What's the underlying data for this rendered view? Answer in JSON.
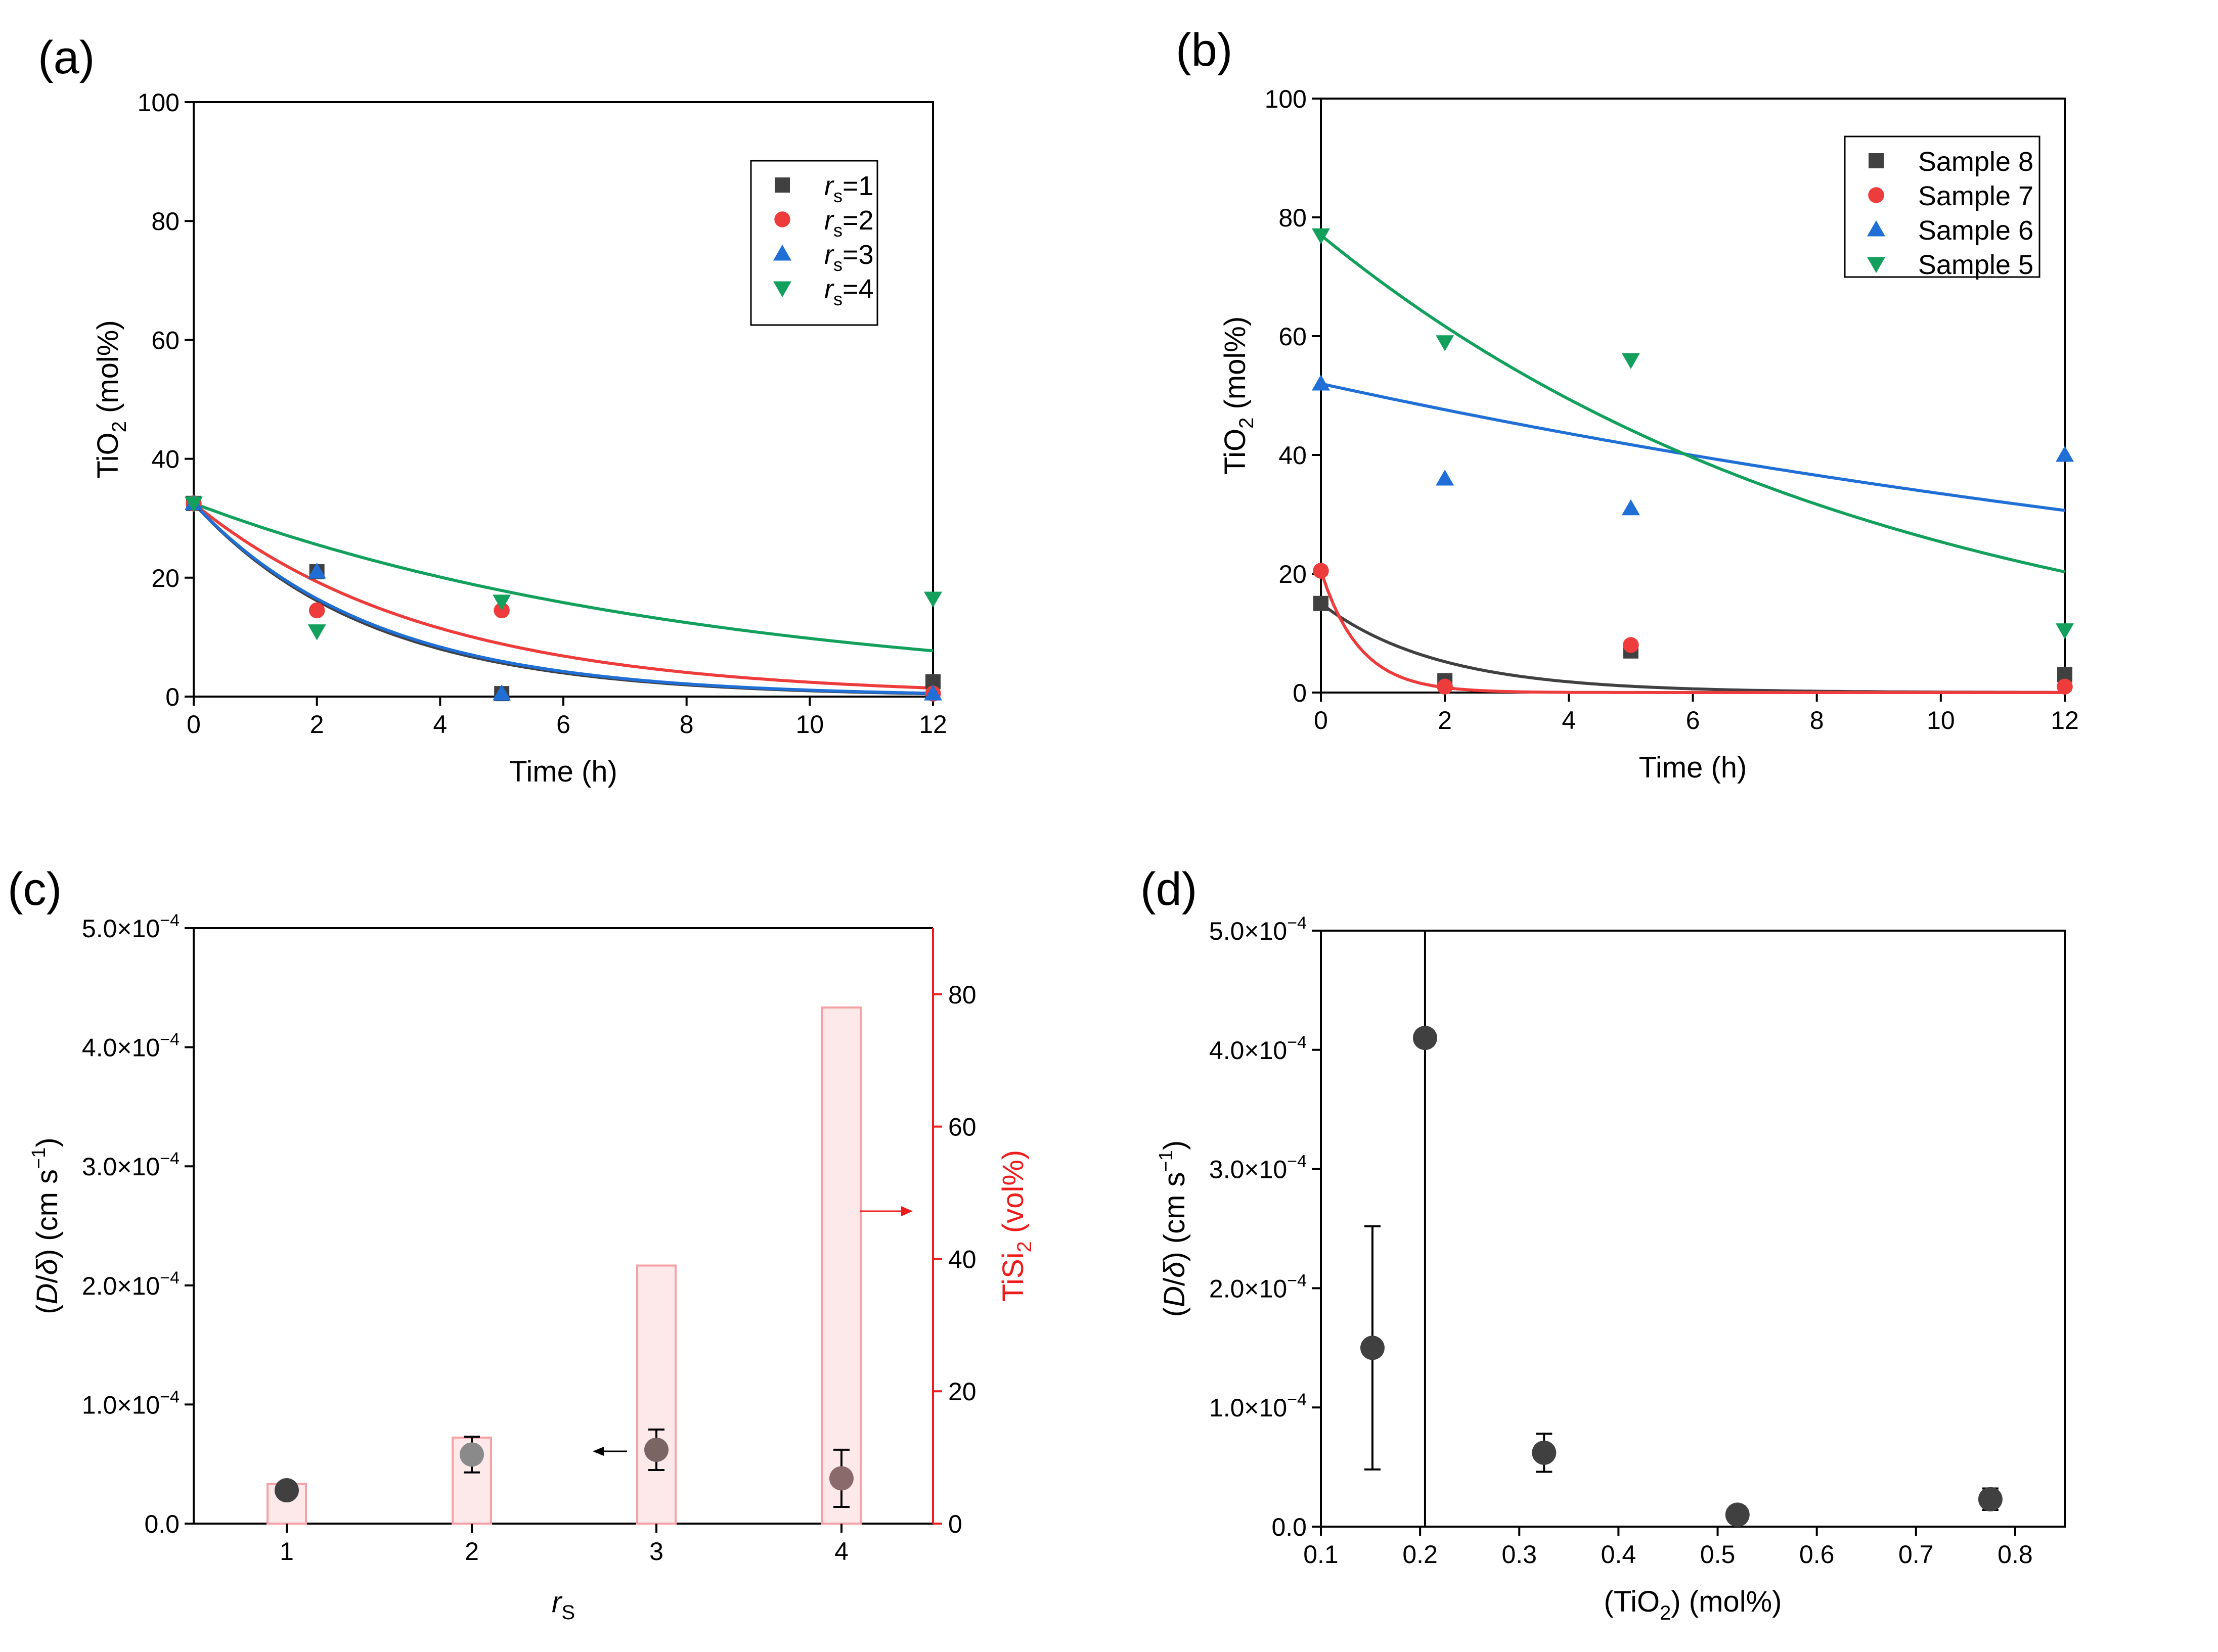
{
  "chart_data": [
    {
      "panel": "(a)",
      "type": "scatter",
      "xlabel": "Time (h)",
      "ylabel_main": "TiO",
      "ylabel_sub": "2",
      "ylabel_tail": " (mol%)",
      "xlim": [
        0,
        12
      ],
      "ylim": [
        0,
        100
      ],
      "xticks": [
        "0",
        "2",
        "4",
        "6",
        "8",
        "10",
        "12"
      ],
      "yticks": [
        "0",
        "20",
        "40",
        "60",
        "80",
        "100"
      ],
      "series": [
        {
          "name": "rs=1",
          "italic": "r",
          "sub": "s",
          "eq": "=1",
          "marker": "square",
          "color": "#404040",
          "x": [
            0,
            2,
            5,
            12
          ],
          "y": [
            32.5,
            21,
            0.5,
            2.5
          ],
          "fit": {
            "a": 32.5,
            "k": 0.35
          }
        },
        {
          "name": "rs=2",
          "italic": "r",
          "sub": "s",
          "eq": "=2",
          "marker": "circle",
          "color": "#ee3b3b",
          "x": [
            0,
            2,
            5,
            12
          ],
          "y": [
            32.5,
            14.5,
            14.5,
            0.5
          ],
          "fit": {
            "a": 32.5,
            "k": 0.26
          }
        },
        {
          "name": "rs=3",
          "italic": "r",
          "sub": "s",
          "eq": "=3",
          "marker": "triangle-up",
          "color": "#1f6fd6",
          "x": [
            0,
            2,
            5,
            12
          ],
          "y": [
            32.5,
            21,
            0.5,
            0.5
          ],
          "fit": {
            "a": 32.5,
            "k": 0.34
          }
        },
        {
          "name": "rs=4",
          "italic": "r",
          "sub": "s",
          "eq": "=4",
          "marker": "triangle-down",
          "color": "#12a05c",
          "x": [
            0,
            2,
            5,
            12
          ],
          "y": [
            32.5,
            11,
            16,
            16.5
          ],
          "fit": {
            "a": 32.5,
            "k": 0.12
          }
        }
      ]
    },
    {
      "panel": "(b)",
      "type": "scatter",
      "xlabel": "Time (h)",
      "ylabel_main": "TiO",
      "ylabel_sub": "2",
      "ylabel_tail": " (mol%)",
      "xlim": [
        0,
        12
      ],
      "ylim": [
        0,
        100
      ],
      "xticks": [
        "0",
        "2",
        "4",
        "6",
        "8",
        "10",
        "12"
      ],
      "yticks": [
        "0",
        "20",
        "40",
        "60",
        "80",
        "100"
      ],
      "series": [
        {
          "name": "Sample 8",
          "marker": "square",
          "color": "#404040",
          "x": [
            0,
            2,
            5,
            12
          ],
          "y": [
            15,
            2,
            7,
            3
          ],
          "fit": {
            "a": 15,
            "k": 0.53
          }
        },
        {
          "name": "Sample 7",
          "marker": "circle",
          "color": "#ee3b3b",
          "x": [
            0,
            2,
            5,
            12
          ],
          "y": [
            20.5,
            1,
            8,
            1
          ],
          "fit": {
            "a": 20.5,
            "k": 1.6
          }
        },
        {
          "name": "Sample 6",
          "marker": "triangle-up",
          "color": "#1f6fd6",
          "x": [
            0,
            2,
            5,
            12
          ],
          "y": [
            52,
            36,
            31,
            40
          ],
          "fit": {
            "a": 52,
            "k": 0.044
          }
        },
        {
          "name": "Sample 5",
          "marker": "triangle-down",
          "color": "#12a05c",
          "x": [
            0,
            2,
            5,
            12
          ],
          "y": [
            77,
            59,
            56,
            10.5
          ],
          "fit": {
            "a": 77,
            "k": 0.111
          }
        }
      ]
    },
    {
      "panel": "(c)",
      "type": "scatter+bar",
      "xlabel_italic": "r",
      "xlabel_sub": "S",
      "ylabel": "(D/δ) (cm s−1)",
      "ylabel_y2_main": "TiSi",
      "ylabel_y2_sub": "2",
      "ylabel_y2_tail": " (vol%)",
      "categories": [
        "1",
        "2",
        "3",
        "4"
      ],
      "ylim": [
        0,
        0.0005
      ],
      "y2lim": [
        0,
        90
      ],
      "yticks_mant": [
        "0.0",
        "1.0×10",
        "2.0×10",
        "3.0×10",
        "4.0×10",
        "5.0×10"
      ],
      "yticks_exp": "−4",
      "y2ticks": [
        "0",
        "20",
        "40",
        "60",
        "80"
      ],
      "points": {
        "values": [
          2.8e-05,
          5.8e-05,
          6.2e-05,
          3.8e-05
        ],
        "err": [
          6e-06,
          1.5e-05,
          1.7e-05,
          2.4e-05
        ],
        "colors": [
          "#404040",
          "#8a8a8a",
          "#7a6464",
          "#8a6a6a"
        ]
      },
      "bars": {
        "values": [
          6,
          13,
          39,
          78
        ],
        "color": "#f5a0a5"
      }
    },
    {
      "panel": "(d)",
      "type": "scatter",
      "xlabel_main": "(TiO",
      "xlabel_sub": "2",
      "xlabel_tail": ") (mol%)",
      "ylabel": "(D/δ) (cm s−1)",
      "xlim": [
        0.1,
        0.85
      ],
      "ylim": [
        0,
        0.0005
      ],
      "xticks": [
        "0.1",
        "0.2",
        "0.3",
        "0.4",
        "0.5",
        "0.6",
        "0.7",
        "0.8"
      ],
      "yticks_mant": [
        "0.0",
        "1.0×10",
        "2.0×10",
        "3.0×10",
        "4.0×10",
        "5.0×10"
      ],
      "yticks_exp": "−4",
      "points": {
        "x": [
          0.152,
          0.205,
          0.325,
          0.52,
          0.775
        ],
        "y": [
          0.00015,
          0.00041,
          6.2e-05,
          1e-05,
          2.3e-05
        ],
        "err": [
          0.000102,
          0.00045,
          1.6e-05,
          7e-06,
          9e-06
        ]
      }
    }
  ]
}
